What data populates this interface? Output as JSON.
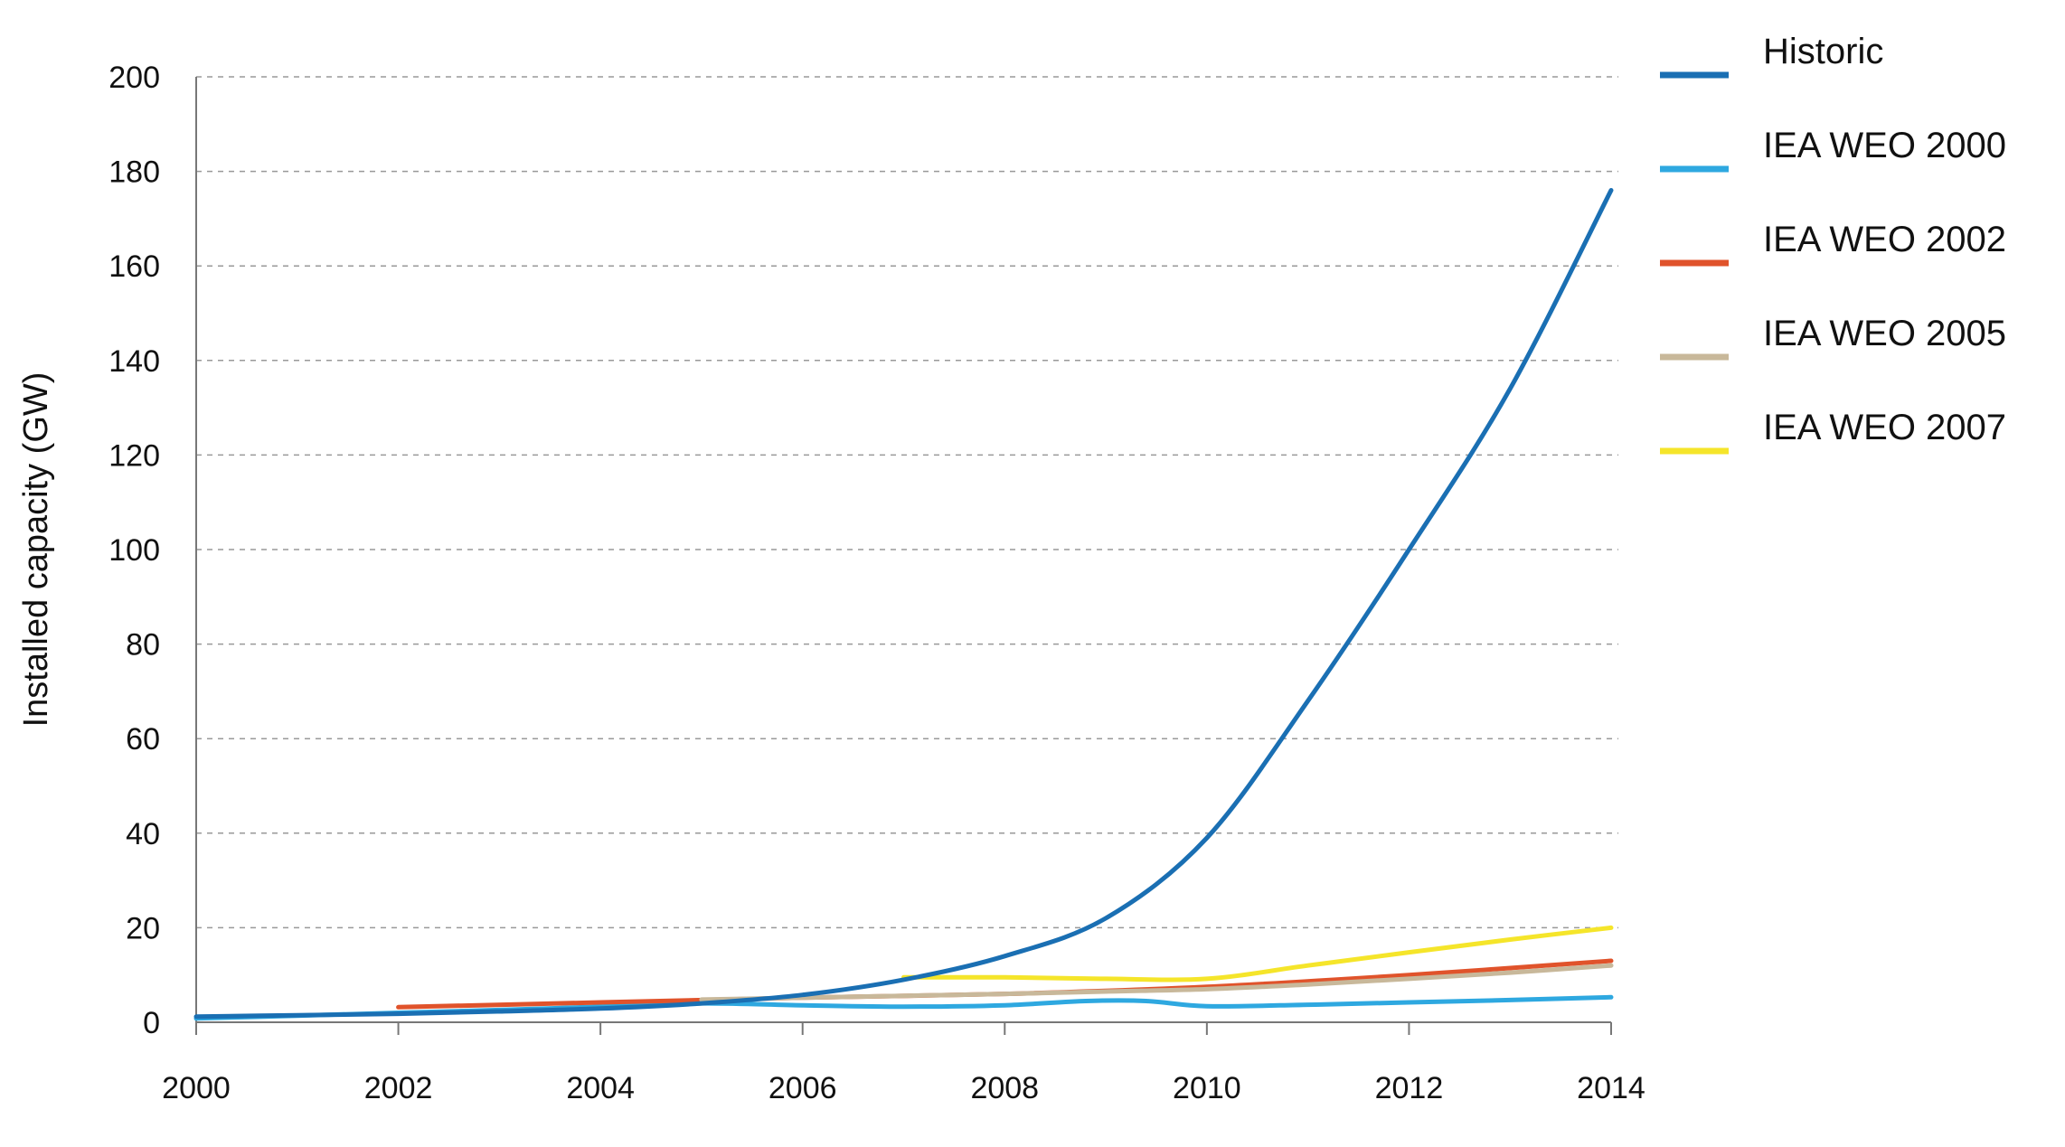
{
  "chart_data": {
    "type": "line",
    "title": "",
    "xlabel": "",
    "ylabel": "Installed capacity (GW)",
    "xlim": [
      2000,
      2014
    ],
    "ylim": [
      0,
      200
    ],
    "x_ticks": [
      "2000",
      "2002",
      "2004",
      "2006",
      "2008",
      "2010",
      "2012",
      "2014"
    ],
    "y_ticks": [
      "0",
      "20",
      "40",
      "60",
      "80",
      "100",
      "120",
      "140",
      "160",
      "180",
      "200"
    ],
    "grid": true,
    "legend_position": "right",
    "series": [
      {
        "name": "Historic",
        "color": "#1a6fb3",
        "x": [
          2000,
          2001,
          2002,
          2003,
          2004,
          2005,
          2006,
          2007,
          2008,
          2009,
          2010,
          2011,
          2012,
          2013,
          2014
        ],
        "y": [
          1.2,
          1.5,
          1.8,
          2.3,
          2.9,
          4.0,
          5.8,
          9.0,
          14.0,
          22.0,
          39.0,
          68.0,
          100.0,
          134.0,
          176.0
        ]
      },
      {
        "name": "IEA WEO 2000",
        "color": "#2ea8e0",
        "x": [
          2000,
          2001,
          2002,
          2003,
          2004,
          2005,
          2006,
          2007,
          2008,
          2008.8,
          2009.4,
          2010,
          2011,
          2012,
          2013,
          2014
        ],
        "y": [
          0.8,
          1.4,
          2.0,
          2.6,
          3.3,
          4.0,
          3.6,
          3.3,
          3.6,
          4.5,
          4.5,
          3.4,
          3.7,
          4.2,
          4.7,
          5.3
        ]
      },
      {
        "name": "IEA WEO 2002",
        "color": "#e0532b",
        "x": [
          2002,
          2004,
          2006,
          2008,
          2010,
          2012,
          2014
        ],
        "y": [
          3.2,
          4.2,
          5.2,
          6.0,
          7.5,
          10.0,
          13.0
        ]
      },
      {
        "name": "IEA WEO 2005",
        "color": "#c8b89a",
        "x": [
          2005,
          2006,
          2007,
          2008,
          2009,
          2010,
          2011,
          2012,
          2013,
          2014
        ],
        "y": [
          4.8,
          5.2,
          5.6,
          6.0,
          6.5,
          7.0,
          8.0,
          9.2,
          10.5,
          12.0
        ]
      },
      {
        "name": "IEA WEO 2007",
        "color": "#f5e52a",
        "x": [
          2007,
          2008,
          2009,
          2010,
          2011,
          2012,
          2013,
          2014
        ],
        "y": [
          9.5,
          9.5,
          9.2,
          9.2,
          12.0,
          14.8,
          17.5,
          20.0
        ]
      }
    ]
  }
}
